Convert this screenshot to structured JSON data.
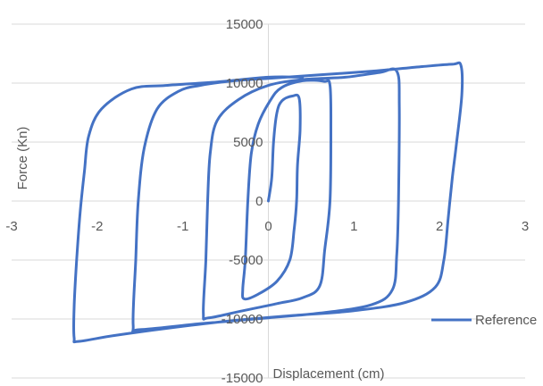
{
  "chart_data": {
    "type": "line",
    "title": "",
    "xlabel": "Displacement (cm)",
    "ylabel": "Force (Kn)",
    "xlim": [
      -3,
      3
    ],
    "ylim": [
      -15000,
      15000
    ],
    "x_ticks": [
      "-3",
      "-2",
      "-1",
      "0",
      "1",
      "2",
      "3"
    ],
    "y_ticks": [
      "15000",
      "10000",
      "5000",
      "0",
      "-5000",
      "-10000",
      "-15000"
    ],
    "gridlines": "horizontal",
    "legend_position": "bottom-right",
    "series_color": "#4472c4",
    "series": [
      {
        "name": "Reference",
        "points": [
          [
            0,
            0
          ],
          [
            0.04,
            2000
          ],
          [
            0.06,
            5000
          ],
          [
            0.1,
            7500
          ],
          [
            0.16,
            8500
          ],
          [
            0.28,
            8900
          ],
          [
            0.36,
            8700
          ],
          [
            0.37,
            6000
          ],
          [
            0.34,
            3000
          ],
          [
            0.33,
            0
          ],
          [
            0.3,
            -2500
          ],
          [
            0.25,
            -5000
          ],
          [
            0.1,
            -6800
          ],
          [
            -0.12,
            -7900
          ],
          [
            -0.28,
            -8300
          ],
          [
            -0.3,
            -7500
          ],
          [
            -0.27,
            -5000
          ],
          [
            -0.24,
            0
          ],
          [
            -0.2,
            4000
          ],
          [
            -0.12,
            6500
          ],
          [
            0.02,
            8500
          ],
          [
            0.15,
            9600
          ],
          [
            0.4,
            10200
          ],
          [
            0.65,
            10150
          ],
          [
            0.72,
            9800
          ],
          [
            0.73,
            6000
          ],
          [
            0.72,
            0
          ],
          [
            0.66,
            -4000
          ],
          [
            0.6,
            -7200
          ],
          [
            0.4,
            -8200
          ],
          [
            0.1,
            -8700
          ],
          [
            -0.3,
            -9300
          ],
          [
            -0.7,
            -9900
          ],
          [
            -0.76,
            -9500
          ],
          [
            -0.73,
            -5000
          ],
          [
            -0.71,
            0
          ],
          [
            -0.68,
            4000
          ],
          [
            -0.6,
            6800
          ],
          [
            -0.35,
            8600
          ],
          [
            0,
            9800
          ],
          [
            0.4,
            10300
          ],
          [
            0.9,
            10500
          ],
          [
            1.3,
            10900
          ],
          [
            1.5,
            11000
          ],
          [
            1.53,
            8000
          ],
          [
            1.52,
            0
          ],
          [
            1.5,
            -4500
          ],
          [
            1.45,
            -7500
          ],
          [
            1.2,
            -8800
          ],
          [
            0.6,
            -9500
          ],
          [
            0,
            -9900
          ],
          [
            -0.8,
            -10400
          ],
          [
            -1.5,
            -10900
          ],
          [
            -1.58,
            -10500
          ],
          [
            -1.55,
            -5000
          ],
          [
            -1.52,
            0
          ],
          [
            -1.45,
            4500
          ],
          [
            -1.3,
            7800
          ],
          [
            -1.05,
            9300
          ],
          [
            -0.8,
            9800
          ],
          [
            -0.4,
            10200
          ],
          [
            0,
            10400
          ],
          [
            0.6,
            10700
          ],
          [
            1.2,
            11000
          ],
          [
            1.8,
            11400
          ],
          [
            2.15,
            11600
          ],
          [
            2.25,
            11500
          ],
          [
            2.26,
            9000
          ],
          [
            2.2,
            5000
          ],
          [
            2.15,
            2000
          ],
          [
            2.1,
            -1500
          ],
          [
            2.05,
            -5000
          ],
          [
            1.95,
            -7300
          ],
          [
            1.6,
            -8600
          ],
          [
            1,
            -9300
          ],
          [
            0.3,
            -9700
          ],
          [
            -0.5,
            -10200
          ],
          [
            -1.2,
            -10800
          ],
          [
            -1.8,
            -11400
          ],
          [
            -2.22,
            -11900
          ],
          [
            -2.27,
            -11600
          ],
          [
            -2.27,
            -9000
          ],
          [
            -2.24,
            -5000
          ],
          [
            -2.2,
            -1000
          ],
          [
            -2.15,
            2500
          ],
          [
            -2.1,
            5500
          ],
          [
            -1.95,
            7800
          ],
          [
            -1.6,
            9500
          ],
          [
            -1.2,
            9800
          ],
          [
            -0.6,
            10100
          ],
          [
            0,
            10500
          ],
          [
            0.4,
            10500
          ]
        ]
      }
    ]
  }
}
